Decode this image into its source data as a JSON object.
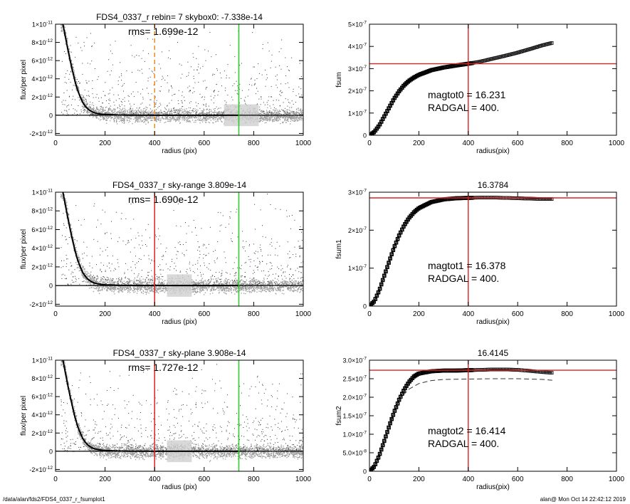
{
  "footer": {
    "path": "/data/alan/fds2/FDS4_0337_r_fsumplot1",
    "user_time": "alan@  Mon Oct 14 22:42:12 2019"
  },
  "colors": {
    "red": "#dd2222",
    "green": "#22cc22",
    "orange": "#ee8822",
    "gray_points": "#9a9a9a",
    "dark_points": "#333333",
    "frame": "#000000"
  },
  "chart_data": [
    {
      "type": "scatter",
      "title": "FDS4_0337_r rebin= 7    skybox0: -7.338e-14",
      "annotation": "rms= 1.699e-12",
      "xlabel": "radius (pix)",
      "ylabel": "flux/per pixel",
      "xlim": [
        0,
        1000
      ],
      "ylim": [
        -2.2e-12,
        1e-11
      ],
      "xticks": [
        0,
        200,
        400,
        600,
        800,
        1000
      ],
      "yticks": [
        -2e-12,
        0,
        2e-12,
        4e-12,
        6e-12,
        8e-12,
        1e-11
      ],
      "ytick_labels": [
        "-2×10-12",
        "0",
        "2×10-12",
        "4×10-12",
        "6×10-12",
        "8×10-12",
        "1×10-11"
      ],
      "profile": {
        "x": [
          30,
          40,
          50,
          60,
          70,
          80,
          90,
          100,
          110,
          120,
          130,
          140,
          150,
          160,
          180,
          200,
          250,
          300,
          400,
          600,
          740
        ],
        "y": [
          1e-11,
          8.6e-12,
          7.2e-12,
          5.9e-12,
          4.7e-12,
          3.6e-12,
          2.7e-12,
          2e-12,
          1.4e-12,
          1e-12,
          7e-13,
          5e-13,
          3.5e-13,
          2.5e-13,
          1.4e-13,
          8e-14,
          3e-14,
          1e-14,
          0,
          0,
          0
        ]
      },
      "vlines": [
        {
          "x": 400,
          "color": "orange",
          "style": "dashed"
        },
        {
          "x": 740,
          "color": "green",
          "style": "solid"
        }
      ],
      "hline": {
        "y": 0
      },
      "scatter_band_width": 7e-13,
      "light_band": [
        680,
        820
      ]
    },
    {
      "type": "line",
      "annotation_lines": [
        "magtot0 =  16.231",
        "RADGAL =     400."
      ],
      "xlabel": "radius(pix)",
      "ylabel": "fsum",
      "xlim": [
        0,
        1000
      ],
      "ylim": [
        0,
        5e-07
      ],
      "xticks": [
        0,
        200,
        400,
        600,
        800,
        1000
      ],
      "yticks": [
        0,
        1e-07,
        2e-07,
        3e-07,
        4e-07,
        5e-07
      ],
      "ytick_labels": [
        "0",
        "1×10-7",
        "2×10-7",
        "3×10-7",
        "4×10-7",
        "5×10-7"
      ],
      "curve": {
        "x": [
          0,
          20,
          40,
          60,
          80,
          100,
          120,
          140,
          160,
          180,
          200,
          250,
          300,
          350,
          400,
          450,
          500,
          550,
          600,
          650,
          700,
          740
        ],
        "y": [
          0,
          1.5e-08,
          4.5e-08,
          8.5e-08,
          1.25e-07,
          1.65e-07,
          1.98e-07,
          2.25e-07,
          2.45e-07,
          2.6e-07,
          2.72e-07,
          2.93e-07,
          3.05e-07,
          3.14e-07,
          3.22e-07,
          3.32e-07,
          3.45e-07,
          3.58e-07,
          3.72e-07,
          3.88e-07,
          4.05e-07,
          4.16e-07
        ]
      },
      "vline": {
        "x": 400,
        "color": "red"
      },
      "hline": {
        "y": 3.22e-07,
        "color": "red"
      }
    },
    {
      "type": "scatter",
      "title": "FDS4_0337_r sky-range  3.809e-14",
      "annotation": "rms= 1.690e-12",
      "xlabel": "radius (pix)",
      "ylabel": "flux/per pixel",
      "xlim": [
        0,
        1000
      ],
      "ylim": [
        -2.2e-12,
        1e-11
      ],
      "xticks": [
        0,
        200,
        400,
        600,
        800,
        1000
      ],
      "yticks": [
        -2e-12,
        0,
        2e-12,
        4e-12,
        6e-12,
        8e-12,
        1e-11
      ],
      "ytick_labels": [
        "-2×10-12",
        "0",
        "2×10-12",
        "4×10-12",
        "6×10-12",
        "8×10-12",
        "1×10-11"
      ],
      "profile": {
        "x": [
          30,
          40,
          50,
          60,
          70,
          80,
          90,
          100,
          110,
          120,
          130,
          140,
          150,
          160,
          180,
          200,
          250,
          300,
          400,
          600,
          740
        ],
        "y": [
          1e-11,
          8.6e-12,
          7.2e-12,
          5.9e-12,
          4.7e-12,
          3.6e-12,
          2.7e-12,
          2e-12,
          1.4e-12,
          1e-12,
          7e-13,
          5e-13,
          3.5e-13,
          2.5e-13,
          1.4e-13,
          8e-14,
          3e-14,
          1e-14,
          0,
          0,
          0
        ]
      },
      "vlines": [
        {
          "x": 400,
          "color": "red",
          "style": "solid"
        },
        {
          "x": 740,
          "color": "green",
          "style": "solid"
        }
      ],
      "hline": {
        "y": 0
      },
      "scatter_band_width": 7e-13,
      "light_band": [
        450,
        550
      ]
    },
    {
      "type": "line",
      "title": "16.3784",
      "annotation_lines": [
        "magtot1 =  16.378",
        "RADGAL =     400."
      ],
      "xlabel": "radius(pix)",
      "ylabel": "fsum1",
      "xlim": [
        0,
        1000
      ],
      "ylim": [
        0,
        3e-07
      ],
      "xticks": [
        0,
        200,
        400,
        600,
        800,
        1000
      ],
      "yticks": [
        0,
        1e-07,
        2e-07,
        3e-07
      ],
      "ytick_labels": [
        "0",
        "1×10-7",
        "2×10-7",
        "3×10-7"
      ],
      "curve": {
        "x": [
          0,
          20,
          40,
          60,
          80,
          100,
          120,
          140,
          160,
          180,
          200,
          250,
          300,
          350,
          400,
          450,
          500,
          550,
          600,
          650,
          700,
          740
        ],
        "y": [
          0,
          1.3e-08,
          4.2e-08,
          8e-08,
          1.18e-07,
          1.55e-07,
          1.86e-07,
          2.12e-07,
          2.32e-07,
          2.47e-07,
          2.58e-07,
          2.74e-07,
          2.81e-07,
          2.84e-07,
          2.85e-07,
          2.86e-07,
          2.86e-07,
          2.85e-07,
          2.84e-07,
          2.83e-07,
          2.82e-07,
          2.82e-07
        ]
      },
      "vline": {
        "x": 400,
        "color": "red"
      },
      "hline": {
        "y": 2.85e-07,
        "color": "red"
      }
    },
    {
      "type": "scatter",
      "title": "FDS4_0337_r sky-plane  3.908e-14",
      "annotation": "rms= 1.727e-12",
      "xlabel": "radius (pix)",
      "ylabel": "flux/per pixel",
      "xlim": [
        0,
        1000
      ],
      "ylim": [
        -2.2e-12,
        1e-11
      ],
      "xticks": [
        0,
        200,
        400,
        600,
        800,
        1000
      ],
      "yticks": [
        -2e-12,
        0,
        2e-12,
        4e-12,
        6e-12,
        8e-12,
        1e-11
      ],
      "ytick_labels": [
        "-2×10-12",
        "0",
        "2×10-12",
        "4×10-12",
        "6×10-12",
        "8×10-12",
        "1×10-11"
      ],
      "profile": {
        "x": [
          30,
          40,
          50,
          60,
          70,
          80,
          90,
          100,
          110,
          120,
          130,
          140,
          150,
          160,
          180,
          200,
          250,
          300,
          400,
          600,
          740
        ],
        "y": [
          1e-11,
          8.6e-12,
          7.2e-12,
          5.9e-12,
          4.7e-12,
          3.6e-12,
          2.7e-12,
          2e-12,
          1.4e-12,
          1e-12,
          7e-13,
          5e-13,
          3.5e-13,
          2.5e-13,
          1.4e-13,
          8e-14,
          3e-14,
          1e-14,
          0,
          0,
          0
        ]
      },
      "vlines": [
        {
          "x": 400,
          "color": "red",
          "style": "solid"
        },
        {
          "x": 740,
          "color": "green",
          "style": "solid"
        }
      ],
      "hline": {
        "y": 0
      },
      "scatter_band_width": 7e-13,
      "light_band": [
        450,
        550
      ]
    },
    {
      "type": "line",
      "title": "16.4145",
      "annotation_lines": [
        "magtot2 =  16.414",
        "RADGAL =     400."
      ],
      "xlabel": "radius(pix)",
      "ylabel": "fsum2",
      "xlim": [
        0,
        1000
      ],
      "ylim": [
        0,
        3e-07
      ],
      "xticks": [
        0,
        200,
        400,
        600,
        800,
        1000
      ],
      "yticks": [
        0,
        5e-08,
        1e-07,
        1.5e-07,
        2e-07,
        2.5e-07,
        3e-07
      ],
      "ytick_labels": [
        "0",
        "5.0×10-8",
        "1.0×10-7",
        "1.5×10-7",
        "2.0×10-7",
        "2.5×10-7",
        "3.0×10-7"
      ],
      "curve": {
        "x": [
          0,
          20,
          40,
          60,
          80,
          100,
          120,
          140,
          160,
          180,
          200,
          250,
          300,
          350,
          400,
          450,
          500,
          550,
          600,
          650,
          700,
          740
        ],
        "y": [
          0,
          1.3e-08,
          4.3e-08,
          8.2e-08,
          1.22e-07,
          1.6e-07,
          1.93e-07,
          2.2e-07,
          2.41e-07,
          2.56e-07,
          2.64e-07,
          2.7e-07,
          2.72e-07,
          2.72e-07,
          2.73e-07,
          2.74e-07,
          2.75e-07,
          2.75e-07,
          2.74e-07,
          2.71e-07,
          2.68e-07,
          2.66e-07
        ]
      },
      "dashed_curve": {
        "x": [
          80,
          100,
          120,
          140,
          160,
          200,
          250,
          300,
          400,
          500,
          600,
          700,
          740
        ],
        "y": [
          1.3e-07,
          1.6e-07,
          1.88e-07,
          2.08e-07,
          2.22e-07,
          2.37e-07,
          2.45e-07,
          2.48e-07,
          2.49e-07,
          2.5e-07,
          2.5e-07,
          2.48e-07,
          2.46e-07
        ]
      },
      "vline": {
        "x": 400,
        "color": "red"
      },
      "hline": {
        "y": 2.73e-07,
        "color": "red"
      }
    }
  ]
}
